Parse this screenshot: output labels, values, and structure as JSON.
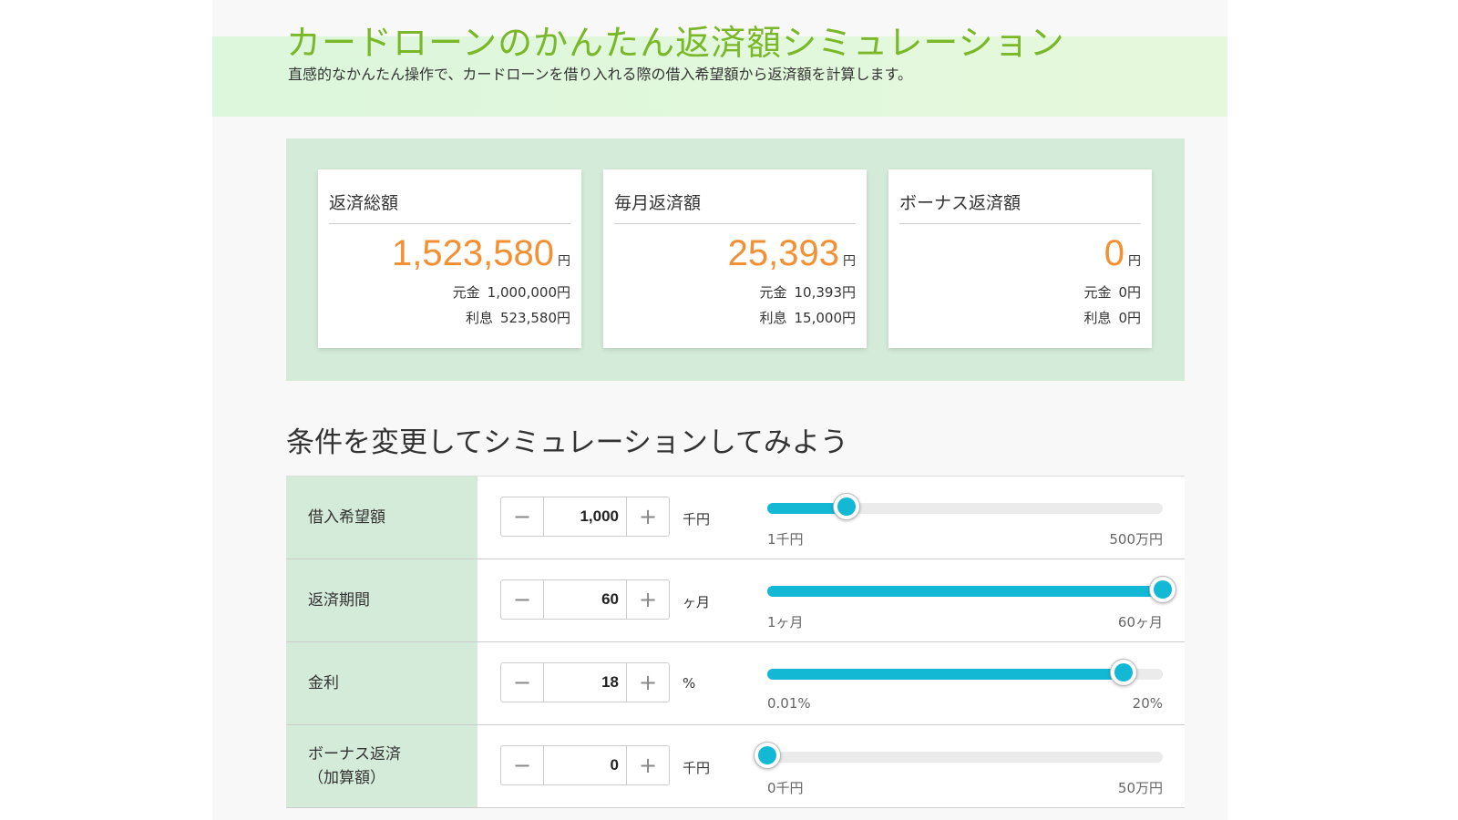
{
  "header": {
    "title": "カードローンのかんたん返済額シミュレーション",
    "subtitle": "直感的なかんたん操作で、カードローンを借り入れる際の借入希望額から返済額を計算します。"
  },
  "summary": {
    "cards": [
      {
        "label": "返済総額",
        "value": "1,523,580",
        "unit": "円",
        "principal_label": "元金",
        "principal": "1,000,000円",
        "interest_label": "利息",
        "interest": "523,580円"
      },
      {
        "label": "毎月返済額",
        "value": "25,393",
        "unit": "円",
        "principal_label": "元金",
        "principal": "10,393円",
        "interest_label": "利息",
        "interest": "15,000円"
      },
      {
        "label": "ボーナス返済額",
        "value": "0",
        "unit": "円",
        "principal_label": "元金",
        "principal": "0円",
        "interest_label": "利息",
        "interest": "0円"
      }
    ]
  },
  "conditions": {
    "title": "条件を変更してシミュレーションしてみよう",
    "rows": [
      {
        "label": "借入希望額",
        "label2": "",
        "value": "1,000",
        "unit": "千円",
        "min_label": "1千円",
        "max_label": "500万円",
        "fill_fraction": 0.2
      },
      {
        "label": "返済期間",
        "label2": "",
        "value": "60",
        "unit": "ヶ月",
        "min_label": "1ヶ月",
        "max_label": "60ヶ月",
        "fill_fraction": 1.0
      },
      {
        "label": "金利",
        "label2": "",
        "value": "18",
        "unit": "%",
        "min_label": "0.01%",
        "max_label": "20%",
        "fill_fraction": 0.9
      },
      {
        "label": "ボーナス返済",
        "label2": "（加算額）",
        "value": "0",
        "unit": "千円",
        "min_label": "0千円",
        "max_label": "50万円",
        "fill_fraction": 0.0
      }
    ],
    "minus_symbol": "−",
    "plus_symbol": "+"
  },
  "colors": {
    "accent": "#13b9d4",
    "title": "#7ab829",
    "amount": "#f39033",
    "panel": "#d5ebd9"
  }
}
